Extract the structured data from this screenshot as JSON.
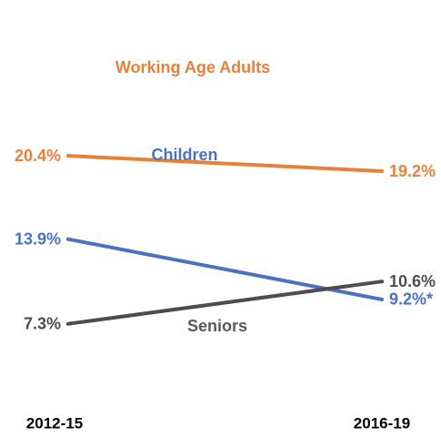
{
  "chart_data": {
    "type": "line",
    "categories": [
      "2012-15",
      "2016-19"
    ],
    "ylim": [
      0,
      22
    ],
    "grid": false,
    "legend": "none",
    "series": [
      {
        "name": "Working Age Adults",
        "color": "#E8803A",
        "values": [
          20.4,
          19.2
        ],
        "value_labels": [
          "20.4%",
          "19.2%"
        ]
      },
      {
        "name": "Children",
        "color": "#4A72C0",
        "values": [
          13.9,
          9.2
        ],
        "value_labels": [
          "13.9%",
          "9.2%*"
        ]
      },
      {
        "name": "Seniors",
        "color": "#4D4D4D",
        "values": [
          7.3,
          10.6
        ],
        "value_labels": [
          "7.3%",
          "10.6%"
        ],
        "name_color": "#595959"
      }
    ]
  }
}
